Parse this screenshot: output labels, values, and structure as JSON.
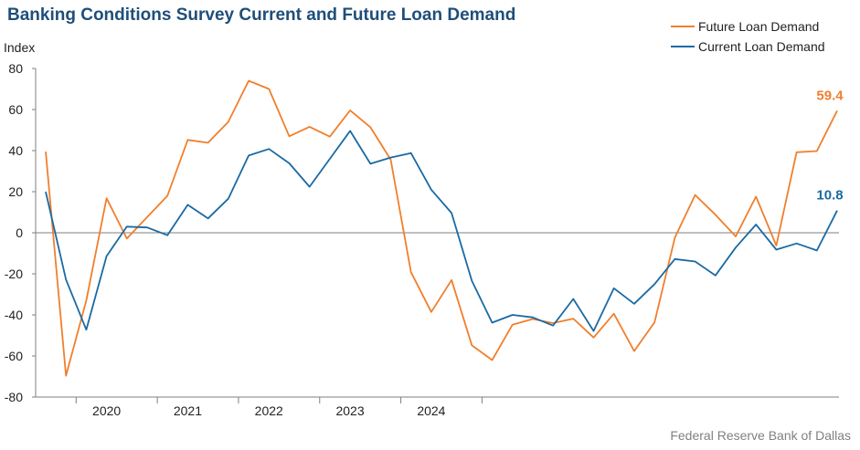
{
  "chart_data": {
    "type": "line",
    "title": "Banking Conditions Survey Current and Future Loan Demand",
    "ylabel": "Index",
    "ylim": [
      -80,
      80
    ],
    "yticks": [
      -80,
      -60,
      -40,
      -20,
      0,
      20,
      40,
      60,
      80
    ],
    "x_period": "quarter",
    "x_start": "2019 Q3",
    "year_labels": [
      "2020",
      "2021",
      "2022",
      "2023",
      "2024"
    ],
    "legend_position": "top-right",
    "grid": false,
    "series": [
      {
        "name": "Future Loan Demand",
        "color": "#f07f2c",
        "end_label": "59.4",
        "values": [
          39.5,
          -69.6,
          -33.0,
          16.8,
          -2.8,
          7.6,
          18.0,
          45.2,
          43.8,
          54.0,
          74.0,
          70.0,
          47.0,
          51.6,
          46.8,
          59.6,
          51.4,
          35.6,
          -19.2,
          -38.6,
          -23.0,
          -54.8,
          -62.0,
          -44.8,
          -42.0,
          -44.0,
          -41.8,
          -51.0,
          -39.4,
          -57.6,
          -43.6,
          -2.4,
          18.4,
          8.8,
          -1.8,
          17.6,
          -6.2,
          39.2,
          39.8,
          59.4
        ]
      },
      {
        "name": "Current Loan Demand",
        "color": "#1a6aa3",
        "end_label": "10.8",
        "values": [
          20.0,
          -22.8,
          -47.2,
          -11.4,
          3.0,
          2.6,
          -1.2,
          13.6,
          7.0,
          16.6,
          37.6,
          40.8,
          33.8,
          22.4,
          36.0,
          49.6,
          33.6,
          36.6,
          38.8,
          21.0,
          9.6,
          -23.4,
          -43.8,
          -40.0,
          -41.2,
          -45.2,
          -32.2,
          -47.8,
          -27.0,
          -34.6,
          -25.0,
          -12.8,
          -14.0,
          -20.8,
          -7.2,
          4.0,
          -8.2,
          -5.2,
          -8.6,
          10.8
        ]
      }
    ]
  },
  "source": "Federal Reserve Bank of Dallas"
}
